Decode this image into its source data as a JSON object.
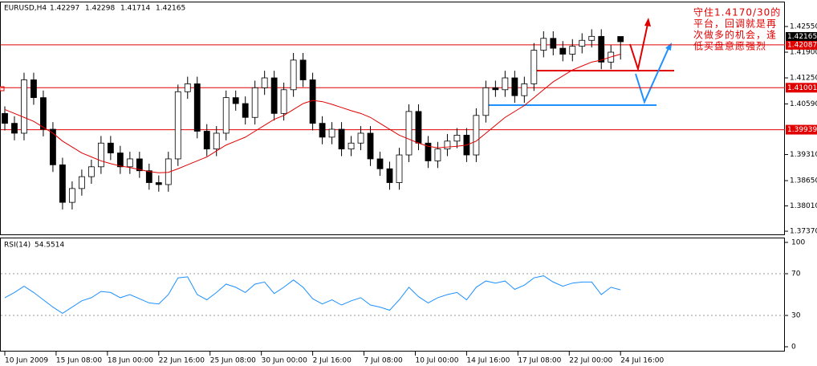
{
  "chart_data": [
    {
      "type": "candlestick",
      "title": "EURUSD,H4",
      "x": [
        0,
        3,
        6,
        9,
        12,
        15,
        18,
        21,
        24,
        27,
        30,
        33,
        36,
        39,
        42,
        45,
        48,
        51,
        54,
        57,
        60,
        63,
        66,
        69,
        72,
        75,
        78,
        81,
        84,
        87,
        90,
        93,
        96,
        99,
        102,
        105,
        108,
        111,
        114,
        117,
        120,
        123,
        126,
        129,
        132,
        135,
        138,
        141,
        144,
        147,
        150,
        153,
        156,
        159,
        162,
        165,
        168,
        171,
        174,
        177,
        180,
        183,
        186,
        189,
        192
      ],
      "open": [
        1.4035,
        1.401,
        1.3985,
        1.412,
        1.4075,
        1.3995,
        1.3905,
        1.381,
        1.3845,
        1.3875,
        1.39,
        1.396,
        1.3935,
        1.39,
        1.392,
        1.389,
        1.386,
        1.3855,
        1.392,
        1.409,
        1.411,
        1.399,
        1.3945,
        1.3985,
        1.4075,
        1.406,
        1.4025,
        1.41,
        1.4125,
        1.4035,
        1.4095,
        1.417,
        1.412,
        1.401,
        1.3975,
        1.3995,
        1.3945,
        1.396,
        1.3985,
        1.392,
        1.3895,
        1.386,
        1.393,
        1.404,
        1.396,
        1.3915,
        1.3945,
        1.3965,
        1.398,
        1.393,
        1.403,
        1.41,
        1.4095,
        1.4125,
        1.408,
        1.411,
        1.4195,
        1.4225,
        1.42,
        1.4185,
        1.4205,
        1.422,
        1.423,
        1.4165,
        1.42297
      ],
      "high": [
        1.4053,
        1.4028,
        1.4138,
        1.4138,
        1.4093,
        1.4013,
        1.3923,
        1.3863,
        1.3893,
        1.3918,
        1.3978,
        1.3978,
        1.3953,
        1.3938,
        1.3938,
        1.3908,
        1.3878,
        1.3938,
        1.4108,
        1.4128,
        1.4128,
        1.4008,
        1.4003,
        1.4093,
        1.4093,
        1.4078,
        1.4118,
        1.4143,
        1.4143,
        1.4113,
        1.4188,
        1.4188,
        1.4138,
        1.4028,
        1.4013,
        1.4013,
        1.3978,
        1.4003,
        1.4003,
        1.3938,
        1.3913,
        1.3948,
        1.4058,
        1.4058,
        1.3978,
        1.3963,
        1.3983,
        1.3998,
        1.3998,
        1.4048,
        1.4118,
        1.4118,
        1.4143,
        1.4143,
        1.4128,
        1.4213,
        1.4243,
        1.4243,
        1.4218,
        1.4223,
        1.4238,
        1.4248,
        1.4248,
        1.4208,
        1.42298
      ],
      "low": [
        1.3992,
        1.3967,
        1.3967,
        1.4057,
        1.3977,
        1.3887,
        1.3792,
        1.3792,
        1.3827,
        1.3857,
        1.3882,
        1.3917,
        1.3882,
        1.3882,
        1.3872,
        1.3842,
        1.3837,
        1.3837,
        1.3902,
        1.4072,
        1.3972,
        1.3927,
        1.3927,
        1.3967,
        1.4042,
        1.4007,
        1.4007,
        1.4082,
        1.4017,
        1.4017,
        1.4077,
        1.4102,
        1.3992,
        1.3957,
        1.3957,
        1.3927,
        1.3927,
        1.3942,
        1.3902,
        1.3877,
        1.3842,
        1.3842,
        1.3912,
        1.3942,
        1.3897,
        1.3897,
        1.3927,
        1.3947,
        1.3912,
        1.3912,
        1.4012,
        1.4077,
        1.4077,
        1.4062,
        1.4062,
        1.4092,
        1.4177,
        1.4182,
        1.4167,
        1.4167,
        1.4187,
        1.4202,
        1.4147,
        1.4147,
        1.41714
      ],
      "close": [
        1.401,
        1.3985,
        1.412,
        1.4075,
        1.3995,
        1.3905,
        1.381,
        1.3845,
        1.3875,
        1.39,
        1.396,
        1.3935,
        1.39,
        1.392,
        1.389,
        1.386,
        1.3855,
        1.392,
        1.409,
        1.411,
        1.399,
        1.3945,
        1.3985,
        1.4075,
        1.406,
        1.4025,
        1.41,
        1.4125,
        1.4035,
        1.4095,
        1.417,
        1.412,
        1.401,
        1.3975,
        1.3995,
        1.3945,
        1.396,
        1.3985,
        1.392,
        1.3895,
        1.386,
        1.393,
        1.404,
        1.396,
        1.3915,
        1.3945,
        1.3965,
        1.398,
        1.393,
        1.403,
        1.41,
        1.4095,
        1.4125,
        1.408,
        1.411,
        1.4195,
        1.4225,
        1.42,
        1.4185,
        1.4205,
        1.422,
        1.423,
        1.4165,
        1.419,
        1.42165
      ],
      "ma": {
        "color": "#e00000",
        "values": [
          1.4045,
          1.4035,
          1.4025,
          1.4015,
          1.4,
          1.3985,
          1.3965,
          1.395,
          1.3935,
          1.3925,
          1.3915,
          1.3908,
          1.3902,
          1.3898,
          1.3893,
          1.3888,
          1.3885,
          1.3886,
          1.3895,
          1.3905,
          1.3915,
          1.3925,
          1.394,
          1.3955,
          1.3965,
          1.3975,
          1.399,
          1.4005,
          1.402,
          1.403,
          1.4045,
          1.406,
          1.4068,
          1.4065,
          1.4058,
          1.405,
          1.4042,
          1.4035,
          1.4025,
          1.401,
          1.3995,
          1.398,
          1.397,
          1.396,
          1.3952,
          1.3948,
          1.395,
          1.3952,
          1.3955,
          1.3965,
          1.3985,
          1.4005,
          1.4025,
          1.404,
          1.4055,
          1.4075,
          1.4095,
          1.4115,
          1.413,
          1.4145,
          1.4155,
          1.4165,
          1.417,
          1.4178,
          1.4185
        ]
      },
      "levels": [
        1.42087,
        1.41001,
        1.39939
      ],
      "level_color": "#e00000",
      "up_color": "#ffffff",
      "down_color": "#000000",
      "xlim": [
        -1.25,
        243.25
      ],
      "ylim": [
        1.3729,
        1.4318
      ],
      "xticks": [
        {
          "value": 0,
          "label": "10 Jun 2009"
        },
        {
          "value": 16,
          "label": "15 Jun 08:00"
        },
        {
          "value": 32,
          "label": "18 Jun 00:00"
        },
        {
          "value": 48,
          "label": "22 Jun 16:00"
        },
        {
          "value": 64,
          "label": "25 Jun 08:00"
        },
        {
          "value": 80,
          "label": "30 Jun 00:00"
        },
        {
          "value": 96,
          "label": "2 Jul 16:00"
        },
        {
          "value": 112,
          "label": "7 Jul 08:00"
        },
        {
          "value": 128,
          "label": "10 Jul 00:00"
        },
        {
          "value": 144,
          "label": "14 Jul 16:00"
        },
        {
          "value": 160,
          "label": "17 Jul 08:00"
        },
        {
          "value": 176,
          "label": "22 Jul 00:00"
        },
        {
          "value": 192,
          "label": "24 Jul 16:00"
        }
      ],
      "yticks": [
        {
          "value": 1.4255,
          "label": "1.42550"
        },
        {
          "value": 1.419,
          "label": "1.41900"
        },
        {
          "value": 1.4125,
          "label": "1.41250"
        },
        {
          "value": 1.4059,
          "label": "1.40590"
        },
        {
          "value": 1.3931,
          "label": "1.39310"
        },
        {
          "value": 1.3865,
          "label": "1.38650"
        },
        {
          "value": 1.3801,
          "label": "1.38010"
        },
        {
          "value": 1.3737,
          "label": "1.37370"
        }
      ],
      "annotation": [
        "守住1.4170/30的",
        "平台，回调就是再",
        "次做多的机会，逢",
        "低买盘意愿强烈"
      ]
    },
    {
      "type": "line",
      "title": "RSI(14)",
      "color": "#1e90ff",
      "values": [
        47,
        52,
        58,
        52,
        45,
        38,
        32,
        38,
        44,
        47,
        53,
        52,
        47,
        50,
        46,
        42,
        41,
        50,
        66,
        67,
        50,
        45,
        52,
        60,
        57,
        52,
        60,
        62,
        51,
        57,
        64,
        57,
        46,
        41,
        45,
        40,
        44,
        47,
        40,
        38,
        35,
        45,
        57,
        48,
        42,
        47,
        50,
        52,
        45,
        57,
        63,
        61,
        63,
        55,
        59,
        66,
        68,
        62,
        58,
        61,
        62,
        62,
        50,
        57,
        54.5514
      ],
      "ylim": [
        -4.6,
        104.6
      ],
      "yticks": [
        100,
        70,
        30,
        0
      ]
    }
  ]
}
